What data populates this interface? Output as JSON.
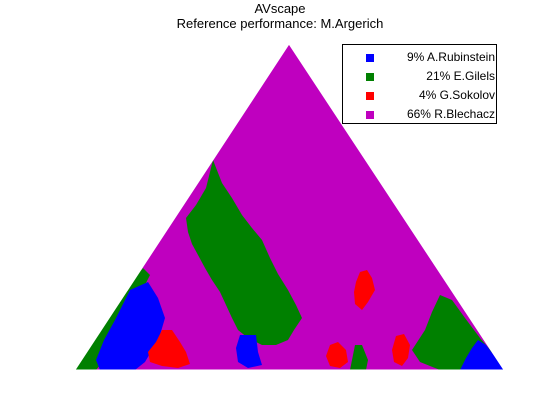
{
  "chart_data": {
    "type": "ternary-region-map",
    "title": "AVscape",
    "subtitle": "Reference performance: M.Argerich",
    "legend_position": "top-right",
    "series": [
      {
        "name": "A.Rubinstein",
        "percent": 9,
        "color": "#0000ff",
        "label": "9% A.Rubinstein"
      },
      {
        "name": "E.Gilels",
        "percent": 21,
        "color": "#008000",
        "label": "21% E.Gilels"
      },
      {
        "name": "G.Sokolov",
        "percent": 4,
        "color": "#ff0000",
        "label": "4% G.Sokolov"
      },
      {
        "name": "R.Blechacz",
        "percent": 66,
        "color": "#bf00bf",
        "label": "66% R.Blechacz"
      }
    ]
  }
}
